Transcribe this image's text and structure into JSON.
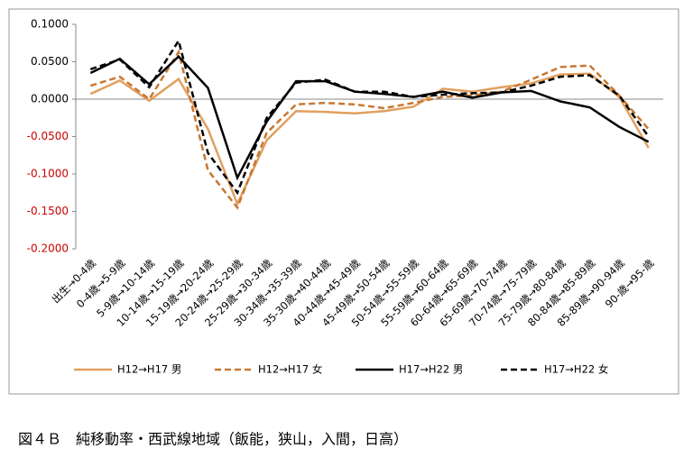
{
  "chart_data": {
    "type": "line",
    "caption": "図４Ｂ　純移動率・西武線地域（飯能，狭山，入間，日高）",
    "categories": [
      "出生→0-4歳",
      "0-4歳→5-9歳",
      "5-9歳→10-14歳",
      "10-14歳→15-19歳",
      "15-19歳→20-24歳",
      "20-24歳→25-29歳",
      "25-29歳→30-34歳",
      "30-34歳→35-39歳",
      "35-30歳→40-44歳",
      "40-44歳→45-49歳",
      "45-49歳→50-54歳",
      "50-54歳→55-59歳",
      "55-59歳→60-64歳",
      "60-64歳→65-69歳",
      "65-69歳→70-74歳",
      "70-74歳→75-79歳",
      "75-79歳→80-84歳",
      "80-84歳→85-89歳",
      "85-89歳→90-94歳",
      "90-歳→95-歳"
    ],
    "series": [
      {
        "name": "H12→H17 男",
        "color": "#e0a060",
        "dashed": false,
        "values": [
          0.007,
          0.025,
          -0.002,
          0.027,
          -0.04,
          -0.14,
          -0.055,
          -0.016,
          -0.017,
          -0.019,
          -0.016,
          -0.01,
          0.014,
          0.01,
          0.016,
          0.021,
          0.033,
          0.034,
          0.003,
          -0.065
        ]
      },
      {
        "name": "H12→H17 女",
        "color": "#c87832",
        "dashed": true,
        "values": [
          0.018,
          0.03,
          0.0,
          0.063,
          -0.095,
          -0.145,
          -0.045,
          -0.007,
          -0.005,
          -0.007,
          -0.012,
          -0.005,
          0.003,
          0.005,
          0.01,
          0.026,
          0.043,
          0.045,
          0.005,
          -0.04
        ]
      },
      {
        "name": "H17→H22 男",
        "color": "#000000",
        "dashed": false,
        "values": [
          0.035,
          0.054,
          0.02,
          0.057,
          0.015,
          -0.105,
          -0.03,
          0.024,
          0.024,
          0.01,
          0.007,
          0.003,
          0.01,
          0.002,
          0.009,
          0.011,
          -0.003,
          -0.011,
          -0.037,
          -0.057
        ]
      },
      {
        "name": "H17→H22 女",
        "color": "#000000",
        "dashed": true,
        "values": [
          0.04,
          0.053,
          0.016,
          0.078,
          -0.072,
          -0.125,
          -0.025,
          0.022,
          0.026,
          0.01,
          0.01,
          0.003,
          0.006,
          0.008,
          0.009,
          0.018,
          0.03,
          0.032,
          0.005,
          -0.05
        ]
      }
    ],
    "ylim": [
      -0.2,
      0.1
    ],
    "yticks": [
      {
        "value": 0.1,
        "label": "0.1000"
      },
      {
        "value": 0.05,
        "label": "0.0500"
      },
      {
        "value": 0,
        "label": "0.0000"
      },
      {
        "value": -0.05,
        "label": "-0.0500"
      },
      {
        "value": -0.1,
        "label": "-0.1000"
      },
      {
        "value": -0.15,
        "label": "-0.1500"
      },
      {
        "value": -0.2,
        "label": "-0.2000"
      }
    ],
    "negative_tick_color": "#cc0000",
    "legend": "bottom"
  }
}
